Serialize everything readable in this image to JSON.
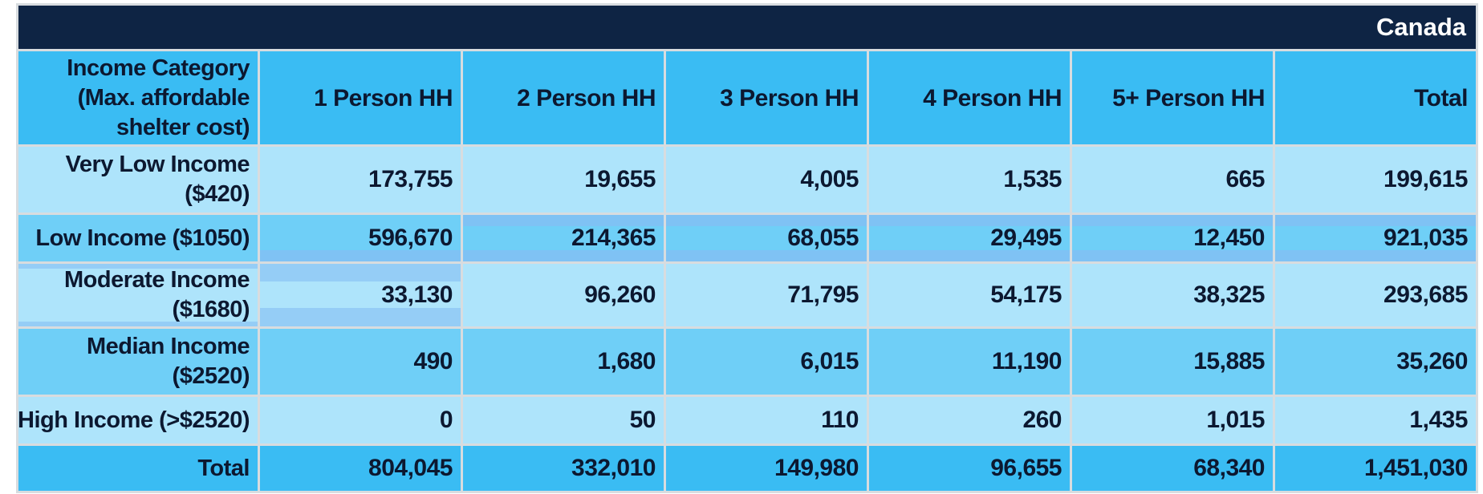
{
  "title_bar": {
    "region_label": "Canada"
  },
  "table": {
    "column_headers": [
      "Income Category (Max. affordable shelter cost)",
      "1 Person HH",
      "2 Person HH",
      "3 Person HH",
      "4 Person HH",
      "5+ Person HH",
      "Total"
    ],
    "rows": [
      {
        "label": "Very Low Income ($420)",
        "values": [
          "173,755",
          "19,655",
          "4,005",
          "1,535",
          "665",
          "199,615"
        ]
      },
      {
        "label": "Low Income ($1050)",
        "values": [
          "596,670",
          "214,365",
          "68,055",
          "29,495",
          "12,450",
          "921,035"
        ]
      },
      {
        "label": "Moderate Income ($1680)",
        "values": [
          "33,130",
          "96,260",
          "71,795",
          "54,175",
          "38,325",
          "293,685"
        ]
      },
      {
        "label": "Median Income ($2520)",
        "values": [
          "490",
          "1,680",
          "6,015",
          "11,190",
          "15,885",
          "35,260"
        ]
      },
      {
        "label": "High Income (>$2520)",
        "values": [
          "0",
          "50",
          "110",
          "260",
          "1,015",
          "1,435"
        ]
      },
      {
        "label": "Total",
        "values": [
          "804,045",
          "332,010",
          "149,980",
          "96,655",
          "68,340",
          "1,451,030"
        ]
      }
    ],
    "colors": {
      "title_band_navy": "#0e2444",
      "header_row_blue": "#3abcf3",
      "row_light_blue": "#aee4fb",
      "row_medium_blue": "#6fcff7",
      "total_row_blue": "#3abcf3",
      "band_on_medium": "#7fc2f4",
      "band_on_light": "#95cdf6",
      "grid_line": "#d8dcdf",
      "text_dark": "#0c1830",
      "text_white": "#ffffff"
    }
  },
  "chart_data": {
    "type": "table",
    "title": "Canada",
    "row_dimension": "Income Category (Max. affordable shelter cost)",
    "columns": [
      "1 Person HH",
      "2 Person HH",
      "3 Person HH",
      "4 Person HH",
      "5+ Person HH",
      "Total"
    ],
    "rows": [
      {
        "label": "Very Low Income ($420)",
        "values": [
          173755,
          19655,
          4005,
          1535,
          665,
          199615
        ]
      },
      {
        "label": "Low Income ($1050)",
        "values": [
          596670,
          214365,
          68055,
          29495,
          12450,
          921035
        ]
      },
      {
        "label": "Moderate Income ($1680)",
        "values": [
          33130,
          96260,
          71795,
          54175,
          38325,
          293685
        ]
      },
      {
        "label": "Median Income ($2520)",
        "values": [
          490,
          1680,
          6015,
          11190,
          15885,
          35260
        ]
      },
      {
        "label": "High Income (>$2520)",
        "values": [
          0,
          50,
          110,
          260,
          1015,
          1435
        ]
      },
      {
        "label": "Total",
        "values": [
          804045,
          332010,
          149980,
          96655,
          68340,
          1451030
        ]
      }
    ]
  }
}
